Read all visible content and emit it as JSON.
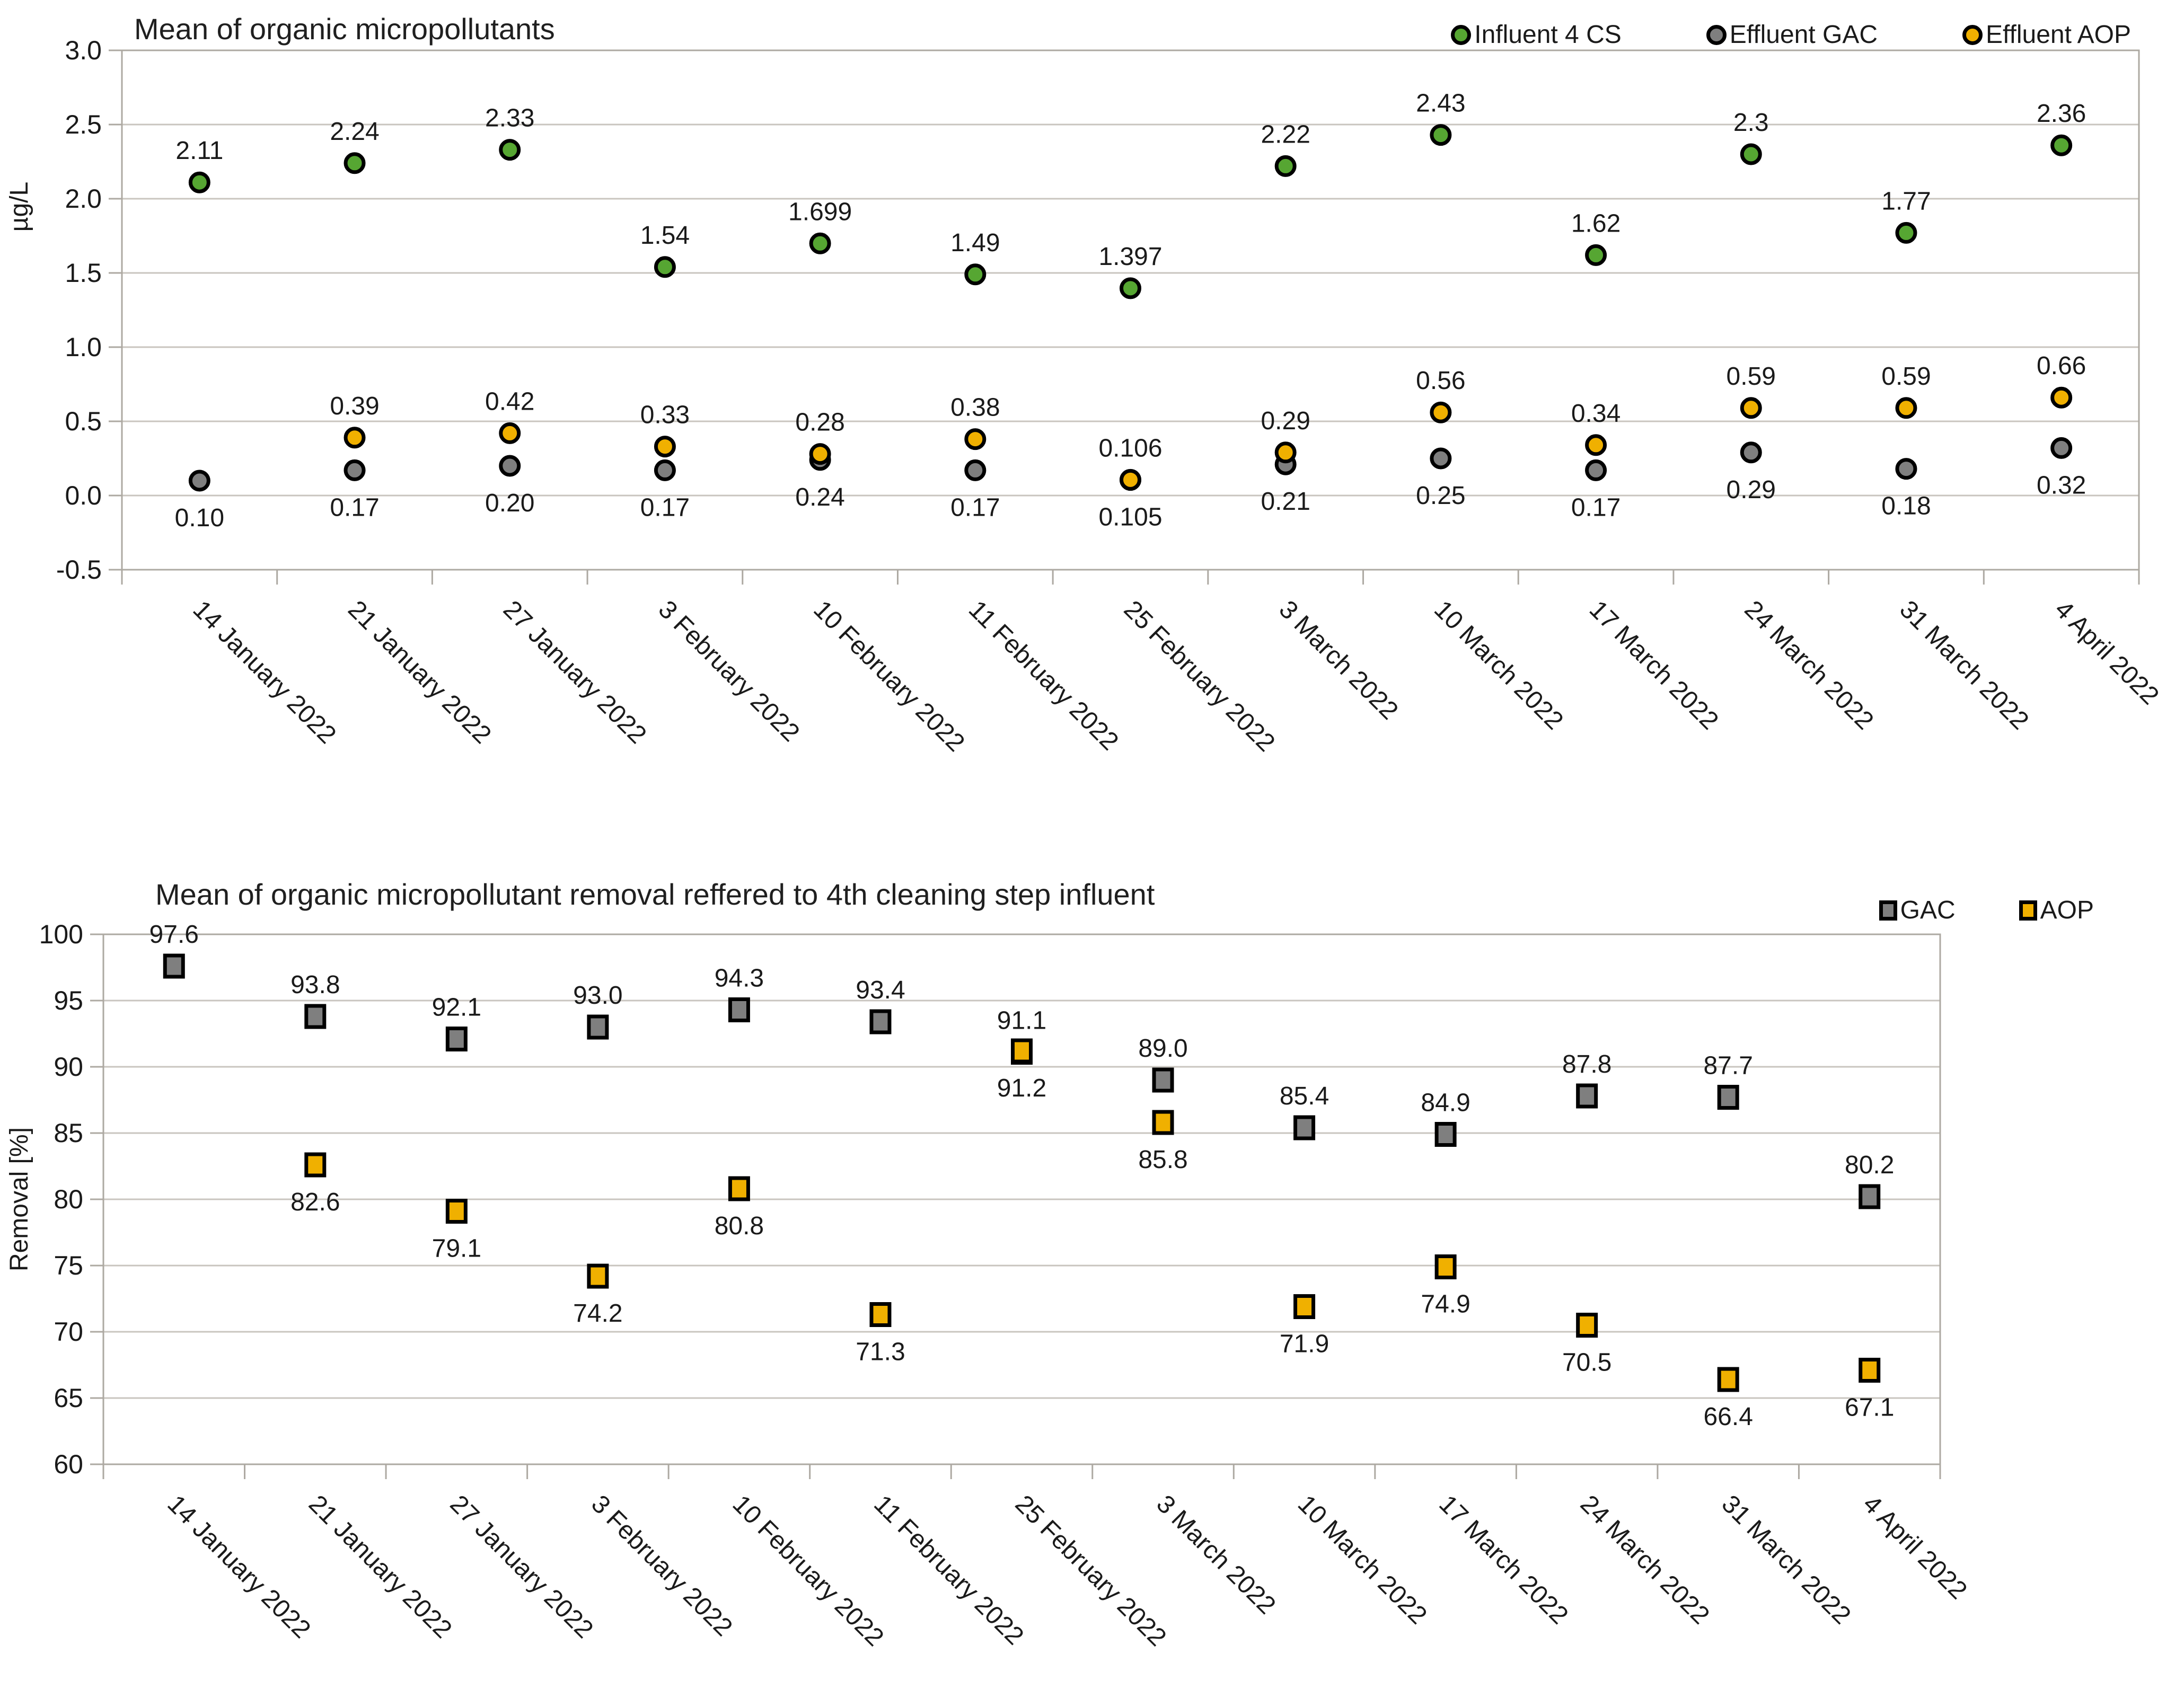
{
  "chart_data": [
    {
      "type": "scatter",
      "title": "Mean of organic micropollutants",
      "ylabel": "µg/L",
      "ylim": [
        -0.5,
        3.0
      ],
      "yticks": [
        "3.0",
        "2.5",
        "2.0",
        "1.5",
        "1.0",
        "0.5",
        "0.0",
        "-0.5"
      ],
      "grid": true,
      "legend_position": "top-right",
      "categories": [
        "14 January 2022",
        "21 January 2022",
        "27 January 2022",
        "3 February 2022",
        "10 February 2022",
        "11 February 2022",
        "25 February 2022",
        "3 March 2022",
        "10 March 2022",
        "17 March 2022",
        "24 March 2022",
        "31 March 2022",
        "4 April 2022"
      ],
      "series": [
        {
          "name": "Influent 4 CS",
          "marker": "circle",
          "color": "#56A632",
          "label_pos": "above",
          "values": [
            2.11,
            2.24,
            2.33,
            1.54,
            1.699,
            1.49,
            1.397,
            2.22,
            2.43,
            1.62,
            2.3,
            1.77,
            2.36
          ],
          "labels": [
            "2.11",
            "2.24",
            "2.33",
            "1.54",
            "1.699",
            "1.49",
            "1.397",
            "2.22",
            "2.43",
            "1.62",
            "2.3",
            "1.77",
            "2.36"
          ]
        },
        {
          "name": "Effluent GAC",
          "marker": "circle",
          "color": "#7F7F7F",
          "label_pos": "below",
          "values": [
            0.1,
            0.17,
            0.2,
            0.17,
            0.24,
            0.17,
            0.105,
            0.21,
            0.25,
            0.17,
            0.29,
            0.18,
            0.32
          ],
          "labels": [
            "0.10",
            "0.17",
            "0.20",
            "0.17",
            "0.24",
            "0.17",
            "0.105",
            "0.21",
            "0.25",
            "0.17",
            "0.29",
            "0.18",
            "0.32"
          ]
        },
        {
          "name": "Effluent AOP",
          "marker": "circle",
          "color": "#F0B000",
          "label_pos": "above",
          "values": [
            null,
            0.39,
            0.42,
            0.33,
            0.28,
            0.38,
            0.106,
            0.29,
            0.56,
            0.34,
            0.59,
            0.59,
            0.66
          ],
          "labels": [
            null,
            "0.39",
            "0.42",
            "0.33",
            "0.28",
            "0.38",
            "0.106",
            "0.29",
            "0.56",
            "0.34",
            "0.59",
            "0.59",
            "0.66"
          ]
        }
      ]
    },
    {
      "type": "scatter",
      "title": "Mean of organic micropollutant removal reffered to 4th cleaning step influent",
      "ylabel": "Removal [%]",
      "ylim": [
        60,
        100
      ],
      "yticks": [
        "100",
        "95",
        "90",
        "85",
        "80",
        "75",
        "70",
        "65",
        "60"
      ],
      "grid": true,
      "legend_position": "top-right",
      "categories": [
        "14 January 2022",
        "21 January 2022",
        "27 January 2022",
        "3 February 2022",
        "10 February 2022",
        "11 February 2022",
        "25 February 2022",
        "3 March 2022",
        "10 March 2022",
        "17 March 2022",
        "24 March 2022",
        "31 March 2022",
        "4 April 2022"
      ],
      "series": [
        {
          "name": "GAC",
          "marker": "square",
          "color": "#7F7F7F",
          "label_pos": "above",
          "values": [
            97.6,
            93.8,
            92.1,
            93.0,
            94.3,
            93.4,
            91.1,
            89.0,
            85.4,
            84.9,
            87.8,
            87.7,
            80.2
          ],
          "labels": [
            "97.6",
            "93.8",
            "92.1",
            "93.0",
            "94.3",
            "93.4",
            "91.1",
            "89.0",
            "85.4",
            "84.9",
            "87.8",
            "87.7",
            "80.2"
          ]
        },
        {
          "name": "AOP",
          "marker": "square",
          "color": "#F0B000",
          "label_pos": "below",
          "values": [
            null,
            82.6,
            79.1,
            74.2,
            80.8,
            71.3,
            91.2,
            85.8,
            71.9,
            74.9,
            70.5,
            66.4,
            67.1
          ],
          "labels": [
            null,
            "82.6",
            "79.1",
            "74.2",
            "80.8",
            "71.3",
            "91.2",
            "85.8",
            "71.9",
            "74.9",
            "70.5",
            "66.4",
            "67.1"
          ]
        }
      ]
    }
  ],
  "colors": {
    "influent_green": "#56A632",
    "gac_gray": "#7F7F7F",
    "aop_orange": "#F0B000",
    "gridline": "#C9C5BF",
    "plot_border": "#ADA9A2",
    "marker_outline": "#000000",
    "text": "#1a1a1a"
  }
}
